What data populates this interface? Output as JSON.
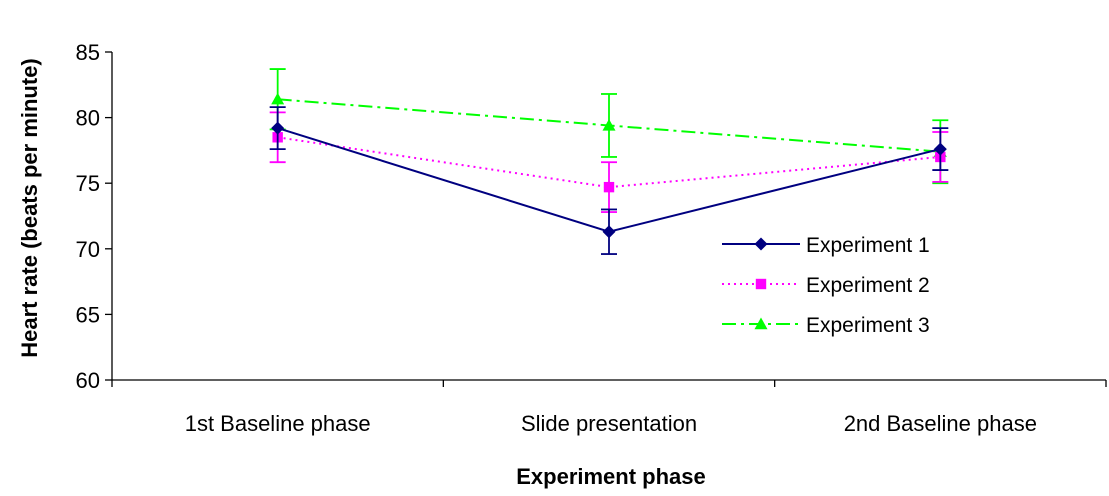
{
  "chart_data": {
    "type": "line",
    "title": "",
    "xlabel": "Experiment phase",
    "ylabel": "Heart rate (beats per minute)",
    "categories": [
      "1st Baseline phase",
      "Slide presentation",
      "2nd Baseline phase"
    ],
    "ylim": [
      60,
      85
    ],
    "yticks": [
      60,
      65,
      70,
      75,
      80,
      85
    ],
    "grid": false,
    "legend_position": "right",
    "series": [
      {
        "name": "Experiment 1",
        "values": [
          79.2,
          71.3,
          77.6
        ],
        "error": [
          1.6,
          1.7,
          1.6
        ],
        "color": "#000080",
        "marker": "diamond",
        "line_style": "solid"
      },
      {
        "name": "Experiment 2",
        "values": [
          78.5,
          74.7,
          77.0
        ],
        "error": [
          1.9,
          1.9,
          1.9
        ],
        "color": "#FF00FF",
        "marker": "square",
        "line_style": "dotted"
      },
      {
        "name": "Experiment 3",
        "values": [
          81.4,
          79.4,
          77.4
        ],
        "error": [
          2.3,
          2.4,
          2.4
        ],
        "color": "#00FF00",
        "marker": "triangle",
        "line_style": "dash-dot"
      }
    ]
  }
}
